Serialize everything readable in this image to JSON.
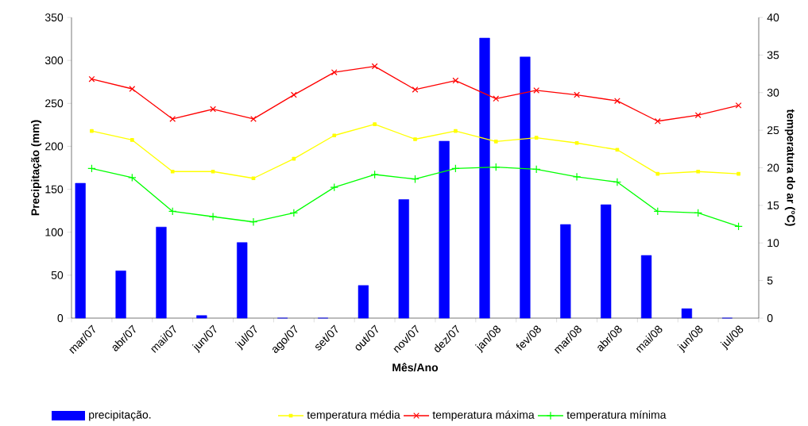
{
  "chart_data": {
    "type": "bar",
    "xlabel": "Mês/Ano",
    "ylabel": "Precipitação (mm)",
    "y2label": "temperatura do ar (°C)",
    "categories": [
      "mar/07",
      "abr/07",
      "mai/07",
      "jun/07",
      "jul/07",
      "ago/07",
      "set/07",
      "out/07",
      "nov/07",
      "dez/07",
      "jan/08",
      "fev/08",
      "mar/08",
      "abr/08",
      "mai/08",
      "jun/08",
      "jul/08"
    ],
    "series": [
      {
        "name": "precipitação.",
        "color": "#0000ff",
        "values": [
          157,
          55,
          106,
          3,
          88,
          0,
          0,
          38,
          138,
          206,
          326,
          304,
          109,
          132,
          73,
          11,
          0
        ]
      },
      {
        "name": "temperatura média",
        "type": "line",
        "axis": "y2",
        "color": "#ffff00",
        "marker": "square",
        "values": [
          24.9,
          23.7,
          19.5,
          19.5,
          18.6,
          21.2,
          24.3,
          25.8,
          23.8,
          24.9,
          23.5,
          24.0,
          23.3,
          22.4,
          19.2,
          19.5,
          19.2
        ]
      },
      {
        "name": "temperatura máxima",
        "type": "line",
        "axis": "y2",
        "color": "#ff0000",
        "marker": "cross",
        "values": [
          31.8,
          30.5,
          26.5,
          27.8,
          26.5,
          29.7,
          32.7,
          33.5,
          30.4,
          31.6,
          29.2,
          30.3,
          29.7,
          28.9,
          26.2,
          27.0,
          28.3
        ]
      },
      {
        "name": "temperatura mínima",
        "type": "line",
        "axis": "y2",
        "color": "#00ff00",
        "marker": "plus",
        "values": [
          19.9,
          18.7,
          14.2,
          13.5,
          12.8,
          14.0,
          17.4,
          19.1,
          18.5,
          19.9,
          20.1,
          19.8,
          18.8,
          18.1,
          14.2,
          14.0,
          12.2
        ]
      }
    ],
    "ylim": [
      0,
      350
    ],
    "yticks": [
      0,
      50,
      100,
      150,
      200,
      250,
      300,
      350
    ],
    "y2lim": [
      0,
      40
    ],
    "y2ticks": [
      0,
      5,
      10,
      15,
      20,
      25,
      30,
      35,
      40
    ],
    "grid": false,
    "legend": "bottom"
  }
}
